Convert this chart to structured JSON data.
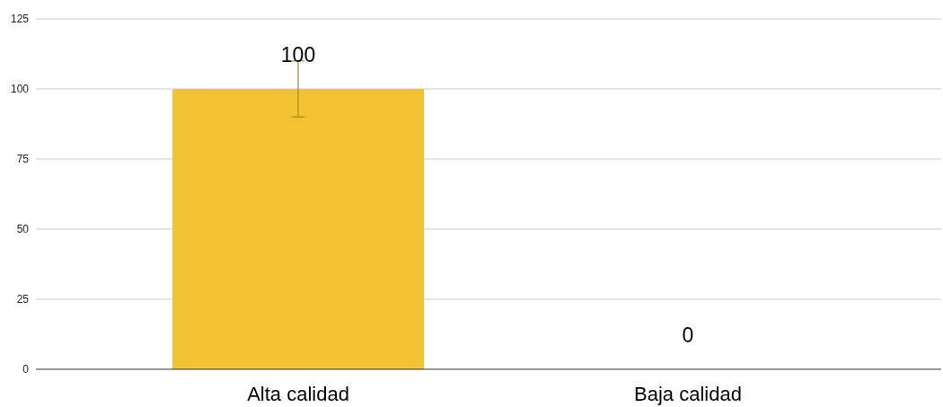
{
  "chart_data": {
    "type": "bar",
    "categories": [
      "Alta calidad",
      "Baja calidad"
    ],
    "values": [
      100,
      0
    ],
    "errors": [
      10,
      null
    ],
    "color": "#f1c232",
    "ylim": [
      0,
      125
    ],
    "yticks": [
      0,
      25,
      50,
      75,
      100,
      125
    ],
    "grid": "y",
    "data_labels": true
  }
}
